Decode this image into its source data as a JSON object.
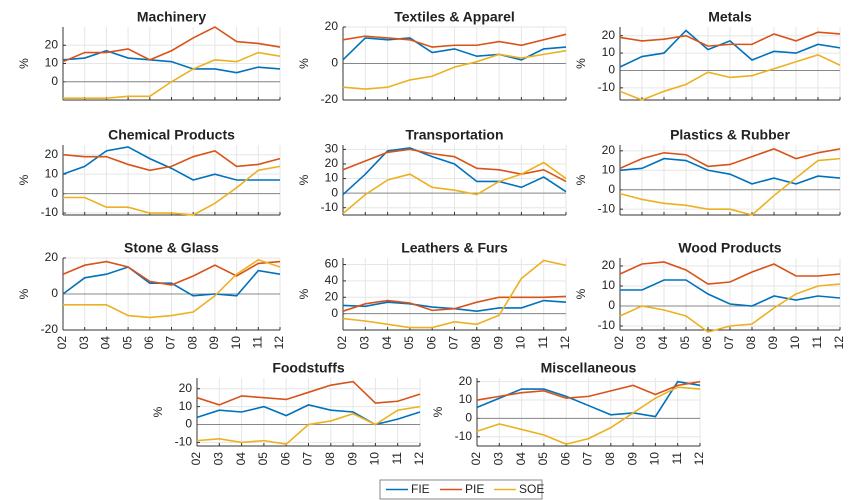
{
  "chart_data": [
    {
      "type": "line",
      "title": "Machinery",
      "ylabel": "%",
      "x": [
        "02",
        "03",
        "04",
        "05",
        "06",
        "07",
        "08",
        "09",
        "10",
        "11",
        "12"
      ],
      "ylim": [
        -10,
        30
      ],
      "yticks": [
        0,
        10,
        20
      ],
      "grid": true,
      "series": [
        {
          "name": "FIE",
          "color": "#0072BD",
          "values": [
            12,
            13,
            17,
            13,
            12,
            11,
            7,
            7,
            5,
            8,
            7
          ]
        },
        {
          "name": "PIE",
          "color": "#D95319",
          "values": [
            11,
            16,
            16,
            18,
            12,
            17,
            24,
            30,
            22,
            21,
            19
          ]
        },
        {
          "name": "SOE",
          "color": "#EDB120",
          "values": [
            -9,
            -9,
            -9,
            -8,
            -8,
            0,
            7,
            12,
            11,
            16,
            14
          ]
        }
      ]
    },
    {
      "type": "line",
      "title": "Textiles & Apparel",
      "ylabel": "%",
      "x": [
        "02",
        "03",
        "04",
        "05",
        "06",
        "07",
        "08",
        "09",
        "10",
        "11",
        "12"
      ],
      "ylim": [
        -20,
        20
      ],
      "yticks": [
        -20,
        0,
        20
      ],
      "grid": true,
      "series": [
        {
          "name": "FIE",
          "color": "#0072BD",
          "values": [
            2,
            14,
            13,
            14,
            6,
            8,
            4,
            5,
            2,
            8,
            9
          ]
        },
        {
          "name": "PIE",
          "color": "#D95319",
          "values": [
            13,
            15,
            14,
            13,
            9,
            10,
            10,
            12,
            10,
            13,
            16
          ]
        },
        {
          "name": "SOE",
          "color": "#EDB120",
          "values": [
            -13,
            -14,
            -13,
            -9,
            -7,
            -2,
            1,
            5,
            3,
            5,
            7
          ]
        }
      ]
    },
    {
      "type": "line",
      "title": "Metals",
      "ylabel": "%",
      "x": [
        "02",
        "03",
        "04",
        "05",
        "06",
        "07",
        "08",
        "09",
        "10",
        "11",
        "12"
      ],
      "ylim": [
        -17,
        25
      ],
      "yticks": [
        -10,
        0,
        10,
        20
      ],
      "grid": true,
      "series": [
        {
          "name": "FIE",
          "color": "#0072BD",
          "values": [
            2,
            8,
            10,
            23,
            12,
            17,
            6,
            11,
            10,
            15,
            13
          ]
        },
        {
          "name": "PIE",
          "color": "#D95319",
          "values": [
            19,
            17,
            18,
            20,
            14,
            15,
            15,
            21,
            17,
            22,
            21
          ]
        },
        {
          "name": "SOE",
          "color": "#EDB120",
          "values": [
            -12,
            -17,
            -12,
            -8,
            -1,
            -4,
            -3,
            1,
            5,
            9,
            3
          ]
        }
      ]
    },
    {
      "type": "line",
      "title": "Chemical Products",
      "ylabel": "%",
      "x": [
        "02",
        "03",
        "04",
        "05",
        "06",
        "07",
        "08",
        "09",
        "10",
        "11",
        "12"
      ],
      "ylim": [
        -11,
        25
      ],
      "yticks": [
        -10,
        0,
        10,
        20
      ],
      "grid": true,
      "series": [
        {
          "name": "FIE",
          "color": "#0072BD",
          "values": [
            10,
            14,
            22,
            24,
            18,
            13,
            7,
            10,
            7,
            7,
            7
          ]
        },
        {
          "name": "PIE",
          "color": "#D95319",
          "values": [
            20,
            19,
            19,
            15,
            12,
            14,
            19,
            22,
            14,
            15,
            18
          ]
        },
        {
          "name": "SOE",
          "color": "#EDB120",
          "values": [
            -2,
            -2,
            -7,
            -7,
            -10,
            -10,
            -11,
            -5,
            3,
            12,
            14
          ]
        }
      ]
    },
    {
      "type": "line",
      "title": "Transportation",
      "ylabel": "%",
      "x": [
        "02",
        "03",
        "04",
        "05",
        "06",
        "07",
        "08",
        "09",
        "10",
        "11",
        "12"
      ],
      "ylim": [
        -15,
        33
      ],
      "yticks": [
        -10,
        0,
        10,
        20,
        30
      ],
      "grid": true,
      "series": [
        {
          "name": "FIE",
          "color": "#0072BD",
          "values": [
            -1,
            13,
            29,
            31,
            25,
            20,
            8,
            8,
            4,
            11,
            1
          ]
        },
        {
          "name": "PIE",
          "color": "#D95319",
          "values": [
            16,
            22,
            28,
            30,
            27,
            25,
            17,
            16,
            13,
            16,
            8
          ]
        },
        {
          "name": "SOE",
          "color": "#EDB120",
          "values": [
            -14,
            -1,
            9,
            13,
            4,
            2,
            -1,
            8,
            13,
            21,
            10
          ]
        }
      ]
    },
    {
      "type": "line",
      "title": "Plastics & Rubber",
      "ylabel": "%",
      "x": [
        "02",
        "03",
        "04",
        "05",
        "06",
        "07",
        "08",
        "09",
        "10",
        "11",
        "12"
      ],
      "ylim": [
        -13,
        23
      ],
      "yticks": [
        -10,
        0,
        10,
        20
      ],
      "grid": true,
      "series": [
        {
          "name": "FIE",
          "color": "#0072BD",
          "values": [
            10,
            11,
            16,
            15,
            10,
            8,
            3,
            6,
            3,
            7,
            6
          ]
        },
        {
          "name": "PIE",
          "color": "#D95319",
          "values": [
            11,
            16,
            19,
            18,
            12,
            13,
            17,
            21,
            16,
            19,
            21
          ]
        },
        {
          "name": "SOE",
          "color": "#EDB120",
          "values": [
            -2,
            -5,
            -7,
            -8,
            -10,
            -10,
            -13,
            -3,
            6,
            15,
            16
          ]
        }
      ]
    },
    {
      "type": "line",
      "title": "Stone & Glass",
      "ylabel": "%",
      "x": [
        "02",
        "03",
        "04",
        "05",
        "06",
        "07",
        "08",
        "09",
        "10",
        "11",
        "12"
      ],
      "ylim": [
        -20,
        20
      ],
      "yticks": [
        -20,
        0,
        20
      ],
      "grid": true,
      "series": [
        {
          "name": "FIE",
          "color": "#0072BD",
          "values": [
            0,
            9,
            11,
            15,
            6,
            6,
            -1,
            0,
            -1,
            13,
            11
          ]
        },
        {
          "name": "PIE",
          "color": "#D95319",
          "values": [
            11,
            16,
            18,
            15,
            7,
            5,
            10,
            16,
            10,
            17,
            18
          ]
        },
        {
          "name": "SOE",
          "color": "#EDB120",
          "values": [
            -6,
            -6,
            -6,
            -12,
            -13,
            -12,
            -10,
            -1,
            11,
            19,
            15
          ]
        }
      ]
    },
    {
      "type": "line",
      "title": "Leathers & Furs",
      "ylabel": "%",
      "x": [
        "02",
        "03",
        "04",
        "05",
        "06",
        "07",
        "08",
        "09",
        "10",
        "11",
        "12"
      ],
      "ylim": [
        -20,
        68
      ],
      "yticks": [
        0,
        20,
        40,
        60
      ],
      "grid": true,
      "series": [
        {
          "name": "FIE",
          "color": "#0072BD",
          "values": [
            10,
            9,
            14,
            12,
            8,
            6,
            3,
            7,
            7,
            16,
            14
          ]
        },
        {
          "name": "PIE",
          "color": "#D95319",
          "values": [
            3,
            12,
            16,
            13,
            4,
            6,
            14,
            20,
            20,
            20,
            21
          ]
        },
        {
          "name": "SOE",
          "color": "#EDB120",
          "values": [
            -6,
            -9,
            -13,
            -17,
            -17,
            -10,
            -13,
            -2,
            43,
            65,
            59
          ]
        }
      ]
    },
    {
      "type": "line",
      "title": "Wood Products",
      "ylabel": "%",
      "x": [
        "02",
        "03",
        "04",
        "05",
        "06",
        "07",
        "08",
        "09",
        "10",
        "11",
        "12"
      ],
      "ylim": [
        -12,
        24
      ],
      "yticks": [
        -10,
        0,
        10,
        20
      ],
      "grid": true,
      "series": [
        {
          "name": "FIE",
          "color": "#0072BD",
          "values": [
            8,
            8,
            13,
            13,
            6,
            1,
            0,
            5,
            3,
            5,
            4
          ]
        },
        {
          "name": "PIE",
          "color": "#D95319",
          "values": [
            16,
            21,
            22,
            18,
            11,
            12,
            17,
            21,
            15,
            15,
            16
          ]
        },
        {
          "name": "SOE",
          "color": "#EDB120",
          "values": [
            -5,
            0,
            -2,
            -5,
            -13,
            -10,
            -9,
            -1,
            6,
            10,
            11
          ]
        }
      ]
    },
    {
      "type": "line",
      "title": "Foodstuffs",
      "ylabel": "%",
      "x": [
        "02",
        "03",
        "04",
        "05",
        "06",
        "07",
        "08",
        "09",
        "10",
        "11",
        "12"
      ],
      "ylim": [
        -12,
        26
      ],
      "yticks": [
        -10,
        0,
        10,
        20
      ],
      "grid": true,
      "series": [
        {
          "name": "FIE",
          "color": "#0072BD",
          "values": [
            4,
            8,
            7,
            10,
            5,
            11,
            8,
            7,
            0,
            3,
            7
          ]
        },
        {
          "name": "PIE",
          "color": "#D95319",
          "values": [
            15,
            11,
            16,
            15,
            14,
            18,
            22,
            24,
            12,
            13,
            17
          ]
        },
        {
          "name": "SOE",
          "color": "#EDB120",
          "values": [
            -9,
            -8,
            -10,
            -9,
            -11,
            0,
            2,
            6,
            0,
            8,
            10
          ]
        }
      ]
    },
    {
      "type": "line",
      "title": "Miscellaneous",
      "ylabel": "%",
      "x": [
        "02",
        "03",
        "04",
        "05",
        "06",
        "07",
        "08",
        "09",
        "10",
        "11",
        "12"
      ],
      "ylim": [
        -15,
        22
      ],
      "yticks": [
        -10,
        0,
        10,
        20
      ],
      "grid": true,
      "series": [
        {
          "name": "FIE",
          "color": "#0072BD",
          "values": [
            6,
            11,
            16,
            16,
            12,
            7,
            2,
            3,
            1,
            20,
            18
          ]
        },
        {
          "name": "PIE",
          "color": "#D95319",
          "values": [
            10,
            12,
            14,
            15,
            11,
            12,
            15,
            18,
            13,
            18,
            20
          ]
        },
        {
          "name": "SOE",
          "color": "#EDB120",
          "values": [
            -7,
            -3,
            -6,
            -9,
            -14,
            -11,
            -5,
            3,
            11,
            17,
            16
          ]
        }
      ]
    }
  ]
}
